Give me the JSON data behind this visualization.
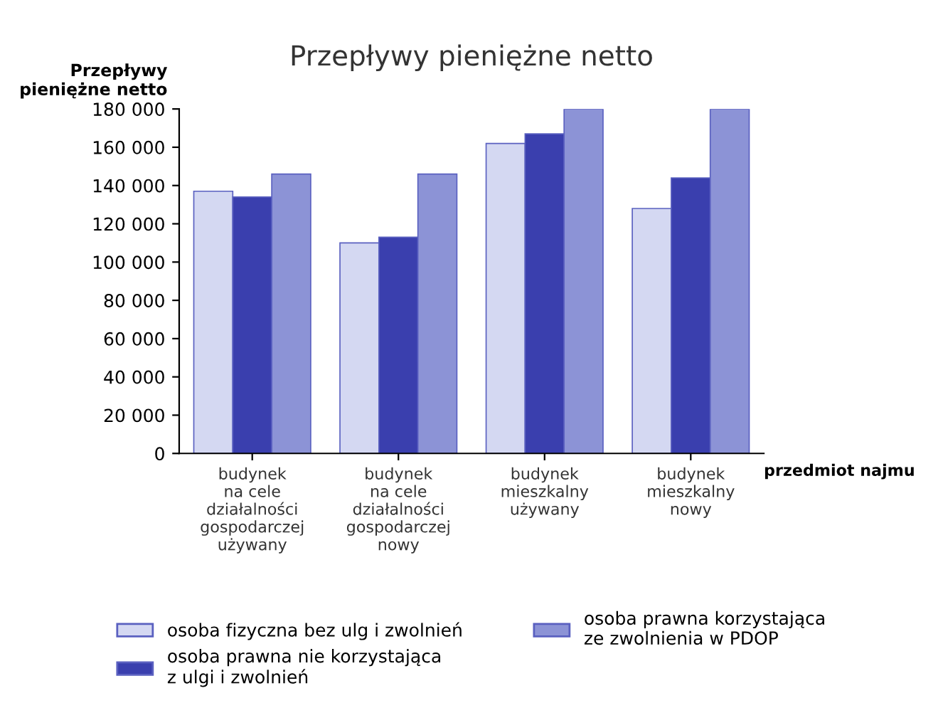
{
  "chart_data": {
    "type": "bar",
    "title": "Przepływy pieniężne netto",
    "ylabel": "Przepływy\npieniężne netto",
    "xlabel": "przedmiot najmu",
    "categories": [
      "budynek\nna cele\ndziałalności\ngospodarczej\nużywany",
      "budynek\nna cele\ndziałalności\ngospodarczej\nnowy",
      "budynek\nmieszkalny\nużywany",
      "budynek\nmieszkalny\nnowy"
    ],
    "series": [
      {
        "name": "osoba fizyczna bez ulg i zwolnień",
        "color": "#d4d8f2",
        "values": [
          137000,
          110000,
          162000,
          128000
        ]
      },
      {
        "name": "osoba prawna nie korzystająca\nz ulgi i zwolnień",
        "color": "#3a3fae",
        "values": [
          134000,
          113000,
          167000,
          144000
        ]
      },
      {
        "name": "osoba prawna korzystająca\nze zwolnienia w PDOP",
        "color": "#8c93d6",
        "values": [
          146000,
          146000,
          180000,
          180000
        ]
      }
    ],
    "ylim": [
      0,
      180000
    ],
    "yticks": [
      {
        "value": 0,
        "label": "0"
      },
      {
        "value": 20000,
        "label": "20 000"
      },
      {
        "value": 40000,
        "label": "40 000"
      },
      {
        "value": 60000,
        "label": "60 000"
      },
      {
        "value": 80000,
        "label": "80 000"
      },
      {
        "value": 100000,
        "label": "100 000"
      },
      {
        "value": 120000,
        "label": "120 000"
      },
      {
        "value": 140000,
        "label": "140 000"
      },
      {
        "value": 160000,
        "label": "160 000"
      },
      {
        "value": 180000,
        "label": "180 000"
      }
    ],
    "legend": "bottom"
  }
}
